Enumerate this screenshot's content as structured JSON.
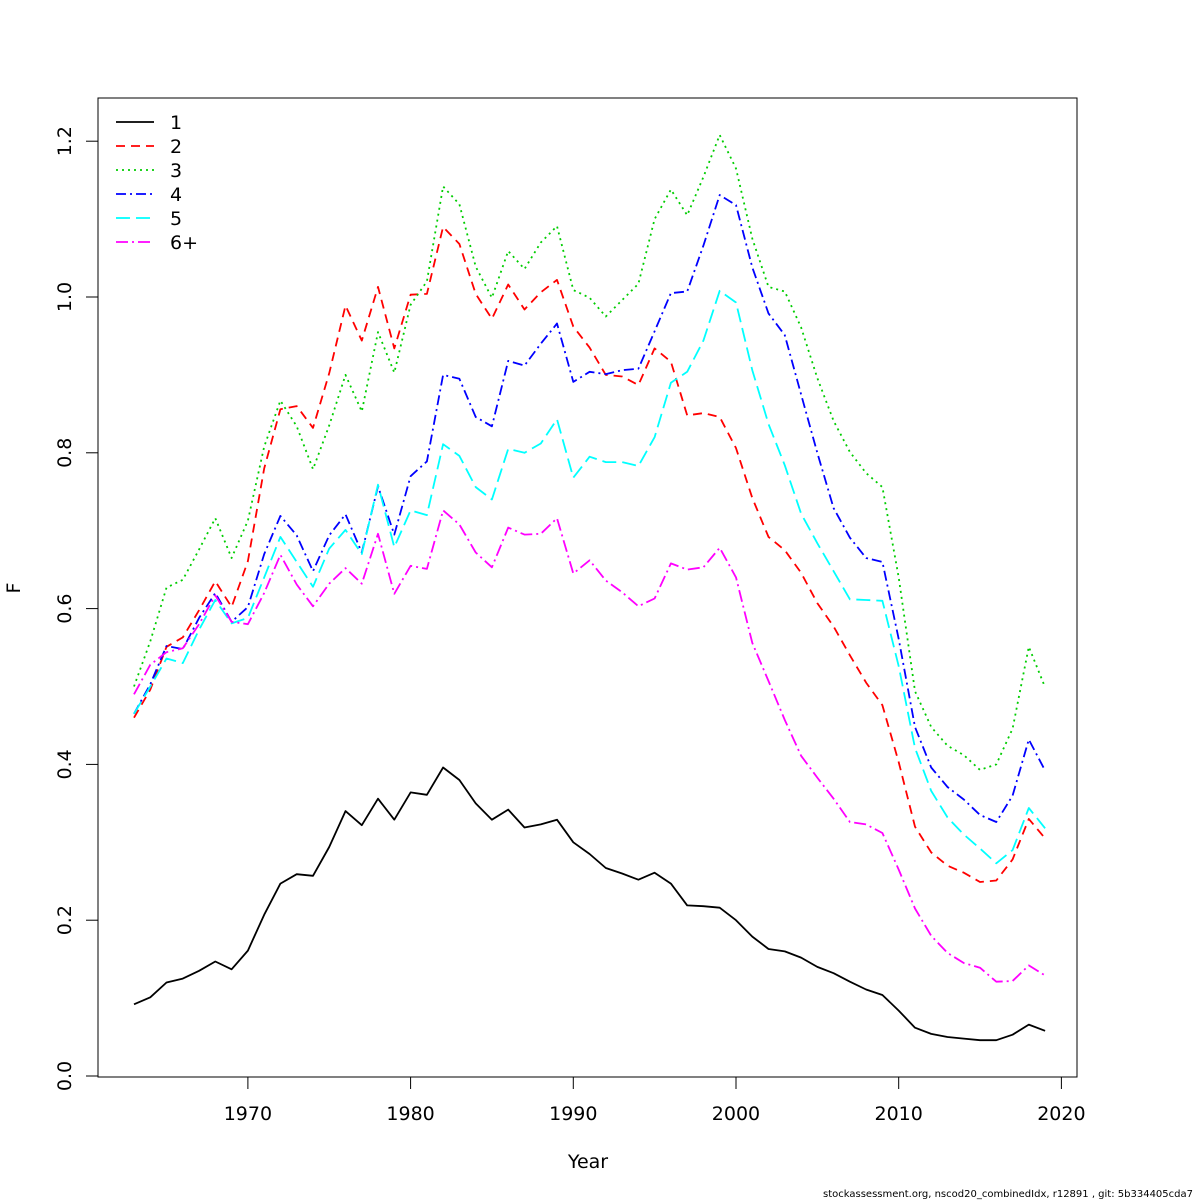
{
  "chart_data": {
    "type": "line",
    "xlabel": "Year",
    "ylabel": "F",
    "xlim": [
      1963,
      2019
    ],
    "ylim": [
      0,
      1.2
    ],
    "x_ticks": [
      "1970",
      "1980",
      "1990",
      "2000",
      "2010",
      "2020"
    ],
    "y_ticks": [
      "0.0",
      "0.2",
      "0.4",
      "0.6",
      "0.8",
      "1.0",
      "1.2"
    ],
    "grid": false,
    "legend_position": "top-left",
    "years": [
      1963,
      1964,
      1965,
      1966,
      1967,
      1968,
      1969,
      1970,
      1971,
      1972,
      1973,
      1974,
      1975,
      1976,
      1977,
      1978,
      1979,
      1980,
      1981,
      1982,
      1983,
      1984,
      1985,
      1986,
      1987,
      1988,
      1989,
      1990,
      1991,
      1992,
      1993,
      1994,
      1995,
      1996,
      1997,
      1998,
      1999,
      2000,
      2001,
      2002,
      2003,
      2004,
      2005,
      2006,
      2007,
      2008,
      2009,
      2010,
      2011,
      2012,
      2013,
      2014,
      2015,
      2016,
      2017,
      2018,
      2019
    ],
    "series": [
      {
        "name": "1",
        "color": "#000000",
        "dash": "",
        "values": [
          0.092,
          0.101,
          0.12,
          0.125,
          0.135,
          0.147,
          0.137,
          0.161,
          0.207,
          0.247,
          0.259,
          0.257,
          0.294,
          0.34,
          0.322,
          0.356,
          0.329,
          0.364,
          0.361,
          0.396,
          0.38,
          0.35,
          0.329,
          0.342,
          0.319,
          0.323,
          0.329,
          0.3,
          0.285,
          0.267,
          0.26,
          0.252,
          0.261,
          0.247,
          0.219,
          0.218,
          0.216,
          0.2,
          0.179,
          0.163,
          0.16,
          0.152,
          0.14,
          0.132,
          0.121,
          0.111,
          0.104,
          0.084,
          0.062,
          0.054,
          0.05,
          0.048,
          0.046,
          0.046,
          0.053,
          0.066,
          0.058
        ]
      },
      {
        "name": "2",
        "color": "#ff0000",
        "dash": "9 6",
        "values": [
          0.46,
          0.496,
          0.551,
          0.563,
          0.598,
          0.635,
          0.602,
          0.661,
          0.78,
          0.856,
          0.86,
          0.832,
          0.902,
          0.989,
          0.944,
          1.013,
          0.934,
          1.003,
          1.004,
          1.09,
          1.068,
          1.004,
          0.972,
          1.016,
          0.984,
          1.006,
          1.022,
          0.962,
          0.935,
          0.9,
          0.898,
          0.887,
          0.934,
          0.917,
          0.848,
          0.851,
          0.846,
          0.806,
          0.742,
          0.692,
          0.675,
          0.646,
          0.607,
          0.577,
          0.54,
          0.505,
          0.476,
          0.403,
          0.32,
          0.287,
          0.27,
          0.261,
          0.249,
          0.251,
          0.278,
          0.33,
          0.305
        ]
      },
      {
        "name": "3",
        "color": "#00cd00",
        "dash": "2 4",
        "values": [
          0.5,
          0.558,
          0.627,
          0.637,
          0.676,
          0.716,
          0.665,
          0.713,
          0.808,
          0.867,
          0.834,
          0.779,
          0.835,
          0.9,
          0.853,
          0.955,
          0.903,
          0.99,
          1.02,
          1.142,
          1.119,
          1.039,
          0.999,
          1.059,
          1.036,
          1.07,
          1.091,
          1.009,
          0.999,
          0.975,
          0.996,
          1.017,
          1.1,
          1.138,
          1.105,
          1.154,
          1.208,
          1.165,
          1.075,
          1.013,
          1.007,
          0.961,
          0.896,
          0.841,
          0.801,
          0.774,
          0.756,
          0.64,
          0.494,
          0.448,
          0.424,
          0.412,
          0.393,
          0.4,
          0.446,
          0.551,
          0.499
        ]
      },
      {
        "name": "4",
        "color": "#0000ff",
        "dash": "10 4 2 4",
        "values": [
          0.465,
          0.503,
          0.552,
          0.548,
          0.588,
          0.62,
          0.583,
          0.602,
          0.67,
          0.719,
          0.694,
          0.648,
          0.694,
          0.721,
          0.672,
          0.757,
          0.695,
          0.77,
          0.789,
          0.9,
          0.895,
          0.846,
          0.834,
          0.918,
          0.912,
          0.94,
          0.966,
          0.891,
          0.904,
          0.901,
          0.906,
          0.908,
          0.956,
          1.005,
          1.007,
          1.066,
          1.131,
          1.118,
          1.038,
          0.979,
          0.951,
          0.875,
          0.8,
          0.729,
          0.691,
          0.665,
          0.66,
          0.561,
          0.448,
          0.396,
          0.371,
          0.355,
          0.335,
          0.326,
          0.36,
          0.432,
          0.392
        ]
      },
      {
        "name": "5",
        "color": "#00ffff",
        "dash": "14 6",
        "values": [
          0.465,
          0.5,
          0.536,
          0.53,
          0.573,
          0.611,
          0.581,
          0.588,
          0.64,
          0.692,
          0.66,
          0.628,
          0.677,
          0.701,
          0.67,
          0.759,
          0.679,
          0.726,
          0.72,
          0.811,
          0.796,
          0.756,
          0.74,
          0.805,
          0.8,
          0.812,
          0.843,
          0.768,
          0.795,
          0.788,
          0.788,
          0.783,
          0.82,
          0.89,
          0.904,
          0.944,
          1.008,
          0.993,
          0.906,
          0.837,
          0.784,
          0.722,
          0.684,
          0.648,
          0.612,
          0.611,
          0.61,
          0.526,
          0.421,
          0.366,
          0.332,
          0.31,
          0.292,
          0.273,
          0.29,
          0.344,
          0.318
        ]
      },
      {
        "name": "6+",
        "color": "#ff00ff",
        "dash": "12 4 2 4",
        "values": [
          0.49,
          0.528,
          0.544,
          0.549,
          0.58,
          0.617,
          0.583,
          0.58,
          0.62,
          0.669,
          0.631,
          0.603,
          0.632,
          0.652,
          0.632,
          0.696,
          0.619,
          0.655,
          0.651,
          0.726,
          0.708,
          0.672,
          0.653,
          0.704,
          0.695,
          0.696,
          0.716,
          0.645,
          0.662,
          0.636,
          0.621,
          0.603,
          0.613,
          0.658,
          0.65,
          0.653,
          0.678,
          0.64,
          0.556,
          0.507,
          0.457,
          0.411,
          0.383,
          0.356,
          0.326,
          0.323,
          0.312,
          0.265,
          0.215,
          0.18,
          0.158,
          0.145,
          0.139,
          0.121,
          0.122,
          0.142,
          0.129
        ]
      }
    ]
  },
  "footer": "stockassessment.org, nscod20_combinedIdx, r12891 , git: 5b334405cda7"
}
